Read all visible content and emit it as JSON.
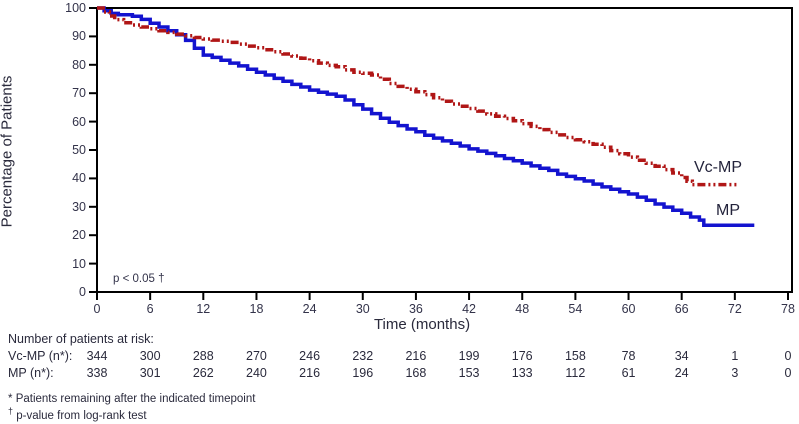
{
  "chart_data": {
    "type": "line",
    "subtype": "kaplan-meier-step",
    "title": "",
    "xlabel": "Time (months)",
    "ylabel": "Percentage of Patients",
    "xlim": [
      0,
      78
    ],
    "ylim": [
      0,
      100
    ],
    "x_ticks": [
      0,
      6,
      12,
      18,
      24,
      30,
      36,
      42,
      48,
      54,
      60,
      66,
      72,
      78
    ],
    "y_ticks": [
      0,
      10,
      20,
      30,
      40,
      50,
      60,
      70,
      80,
      90,
      100
    ],
    "grid": "off",
    "legend_position": "end-of-line-labels",
    "annotation": "p < 0.05 †",
    "frame_color": "#000000",
    "series": [
      {
        "name": "Vc-MP",
        "color": "#b01616",
        "line_style": "dash-dot",
        "points": [
          [
            0,
            100
          ],
          [
            0.7,
            98.6
          ],
          [
            1.4,
            97.2
          ],
          [
            2,
            95.9
          ],
          [
            3,
            94.8
          ],
          [
            4,
            94.0
          ],
          [
            5,
            93.3
          ],
          [
            6,
            92.7
          ],
          [
            7,
            92.0
          ],
          [
            8,
            91.4
          ],
          [
            9,
            90.8
          ],
          [
            10,
            90.2
          ],
          [
            11,
            89.6
          ],
          [
            12,
            89.1
          ],
          [
            13,
            88.7
          ],
          [
            14,
            88.3
          ],
          [
            15,
            87.9
          ],
          [
            16,
            87.3
          ],
          [
            17,
            86.6
          ],
          [
            18,
            86.0
          ],
          [
            19,
            85.3
          ],
          [
            20,
            84.6
          ],
          [
            21,
            83.8
          ],
          [
            22,
            83.1
          ],
          [
            23,
            82.3
          ],
          [
            24,
            81.4
          ],
          [
            25,
            80.6
          ],
          [
            26,
            79.8
          ],
          [
            27,
            79.3
          ],
          [
            28,
            78.2
          ],
          [
            29,
            77.4
          ],
          [
            30,
            77.0
          ],
          [
            31,
            76.4
          ],
          [
            32,
            74.9
          ],
          [
            33,
            73.4
          ],
          [
            34,
            72.4
          ],
          [
            35,
            71.4
          ],
          [
            36,
            70.5
          ],
          [
            37,
            69.5
          ],
          [
            38,
            68.4
          ],
          [
            39,
            67.2
          ],
          [
            40,
            66.2
          ],
          [
            41,
            65.4
          ],
          [
            42,
            64.6
          ],
          [
            43,
            63.7
          ],
          [
            44,
            62.7
          ],
          [
            45,
            61.9
          ],
          [
            46,
            61.1
          ],
          [
            47,
            60.3
          ],
          [
            48,
            59.3
          ],
          [
            49,
            58.3
          ],
          [
            50,
            57.2
          ],
          [
            51,
            56.2
          ],
          [
            52,
            55.3
          ],
          [
            53,
            54.4
          ],
          [
            54,
            53.6
          ],
          [
            55,
            52.9
          ],
          [
            56,
            52.0
          ],
          [
            57,
            51.0
          ],
          [
            58,
            49.8
          ],
          [
            59,
            48.7
          ],
          [
            60,
            47.5
          ],
          [
            61,
            46.4
          ],
          [
            62,
            45.3
          ],
          [
            63,
            44.3
          ],
          [
            64,
            43.1
          ],
          [
            65,
            41.9
          ],
          [
            66,
            40.3
          ],
          [
            66.6,
            39.0
          ],
          [
            67.2,
            37.8
          ],
          [
            72.4,
            37.8
          ]
        ]
      },
      {
        "name": "MP",
        "color": "#1313cf",
        "line_style": "solid",
        "points": [
          [
            0,
            100
          ],
          [
            0.8,
            99.0
          ],
          [
            1.6,
            98.1
          ],
          [
            2.4,
            97.6
          ],
          [
            4,
            97.1
          ],
          [
            5,
            96.0
          ],
          [
            6,
            94.6
          ],
          [
            7,
            93.3
          ],
          [
            8,
            92.0
          ],
          [
            9,
            90.6
          ],
          [
            10,
            88.6
          ],
          [
            11,
            85.8
          ],
          [
            12,
            83.4
          ],
          [
            13,
            82.6
          ],
          [
            14,
            81.6
          ],
          [
            15,
            80.6
          ],
          [
            16,
            79.6
          ],
          [
            17,
            78.4
          ],
          [
            18,
            77.4
          ],
          [
            19,
            76.4
          ],
          [
            20,
            75.2
          ],
          [
            21,
            74.2
          ],
          [
            22,
            73.1
          ],
          [
            23,
            72.2
          ],
          [
            24,
            71.1
          ],
          [
            25,
            70.3
          ],
          [
            26,
            69.7
          ],
          [
            27,
            68.9
          ],
          [
            28,
            67.6
          ],
          [
            29,
            65.9
          ],
          [
            30,
            64.4
          ],
          [
            31,
            62.8
          ],
          [
            32,
            61.2
          ],
          [
            33,
            59.8
          ],
          [
            34,
            58.6
          ],
          [
            35,
            57.4
          ],
          [
            36,
            56.4
          ],
          [
            37,
            55.2
          ],
          [
            38,
            54.2
          ],
          [
            39,
            53.2
          ],
          [
            40,
            52.4
          ],
          [
            41,
            51.4
          ],
          [
            42,
            50.4
          ],
          [
            43,
            49.6
          ],
          [
            44,
            48.8
          ],
          [
            45,
            48.0
          ],
          [
            46,
            47.0
          ],
          [
            47,
            46.2
          ],
          [
            48,
            45.4
          ],
          [
            49,
            44.4
          ],
          [
            50,
            43.6
          ],
          [
            51,
            42.8
          ],
          [
            52,
            41.5
          ],
          [
            53,
            40.7
          ],
          [
            54,
            39.9
          ],
          [
            55,
            39.1
          ],
          [
            56,
            38.0
          ],
          [
            57,
            37.0
          ],
          [
            58,
            36.2
          ],
          [
            59,
            35.3
          ],
          [
            60,
            34.5
          ],
          [
            61,
            33.4
          ],
          [
            62,
            32.3
          ],
          [
            63,
            31.0
          ],
          [
            64,
            29.9
          ],
          [
            65,
            28.8
          ],
          [
            66,
            27.7
          ],
          [
            67,
            26.4
          ],
          [
            68,
            25.3
          ],
          [
            68.5,
            23.5
          ],
          [
            74.2,
            23.5
          ]
        ]
      }
    ]
  },
  "series_end_labels": {
    "vcmp": "Vc-MP",
    "mp": "MP"
  },
  "annotation": {
    "text": "p < 0.05 †"
  },
  "axis": {
    "xlabel": "Time (months)",
    "ylabel": "Percentage of Patients"
  },
  "risk_table": {
    "header": "Number of patients at risk:",
    "timepoints": [
      0,
      6,
      12,
      18,
      24,
      30,
      36,
      42,
      48,
      54,
      60,
      66,
      72,
      78
    ],
    "rows": [
      {
        "label": "Vc-MP (n*):",
        "values": [
          344,
          300,
          288,
          270,
          246,
          232,
          216,
          199,
          176,
          158,
          78,
          34,
          1,
          0
        ]
      },
      {
        "label": "MP (n*):",
        "values": [
          338,
          301,
          262,
          240,
          216,
          196,
          168,
          153,
          133,
          112,
          61,
          24,
          3,
          0
        ]
      }
    ]
  },
  "footnotes": [
    {
      "symbol": "*",
      "text": "Patients remaining after the indicated timepoint"
    },
    {
      "symbol": "†",
      "text": "p-value from log-rank test"
    }
  ]
}
